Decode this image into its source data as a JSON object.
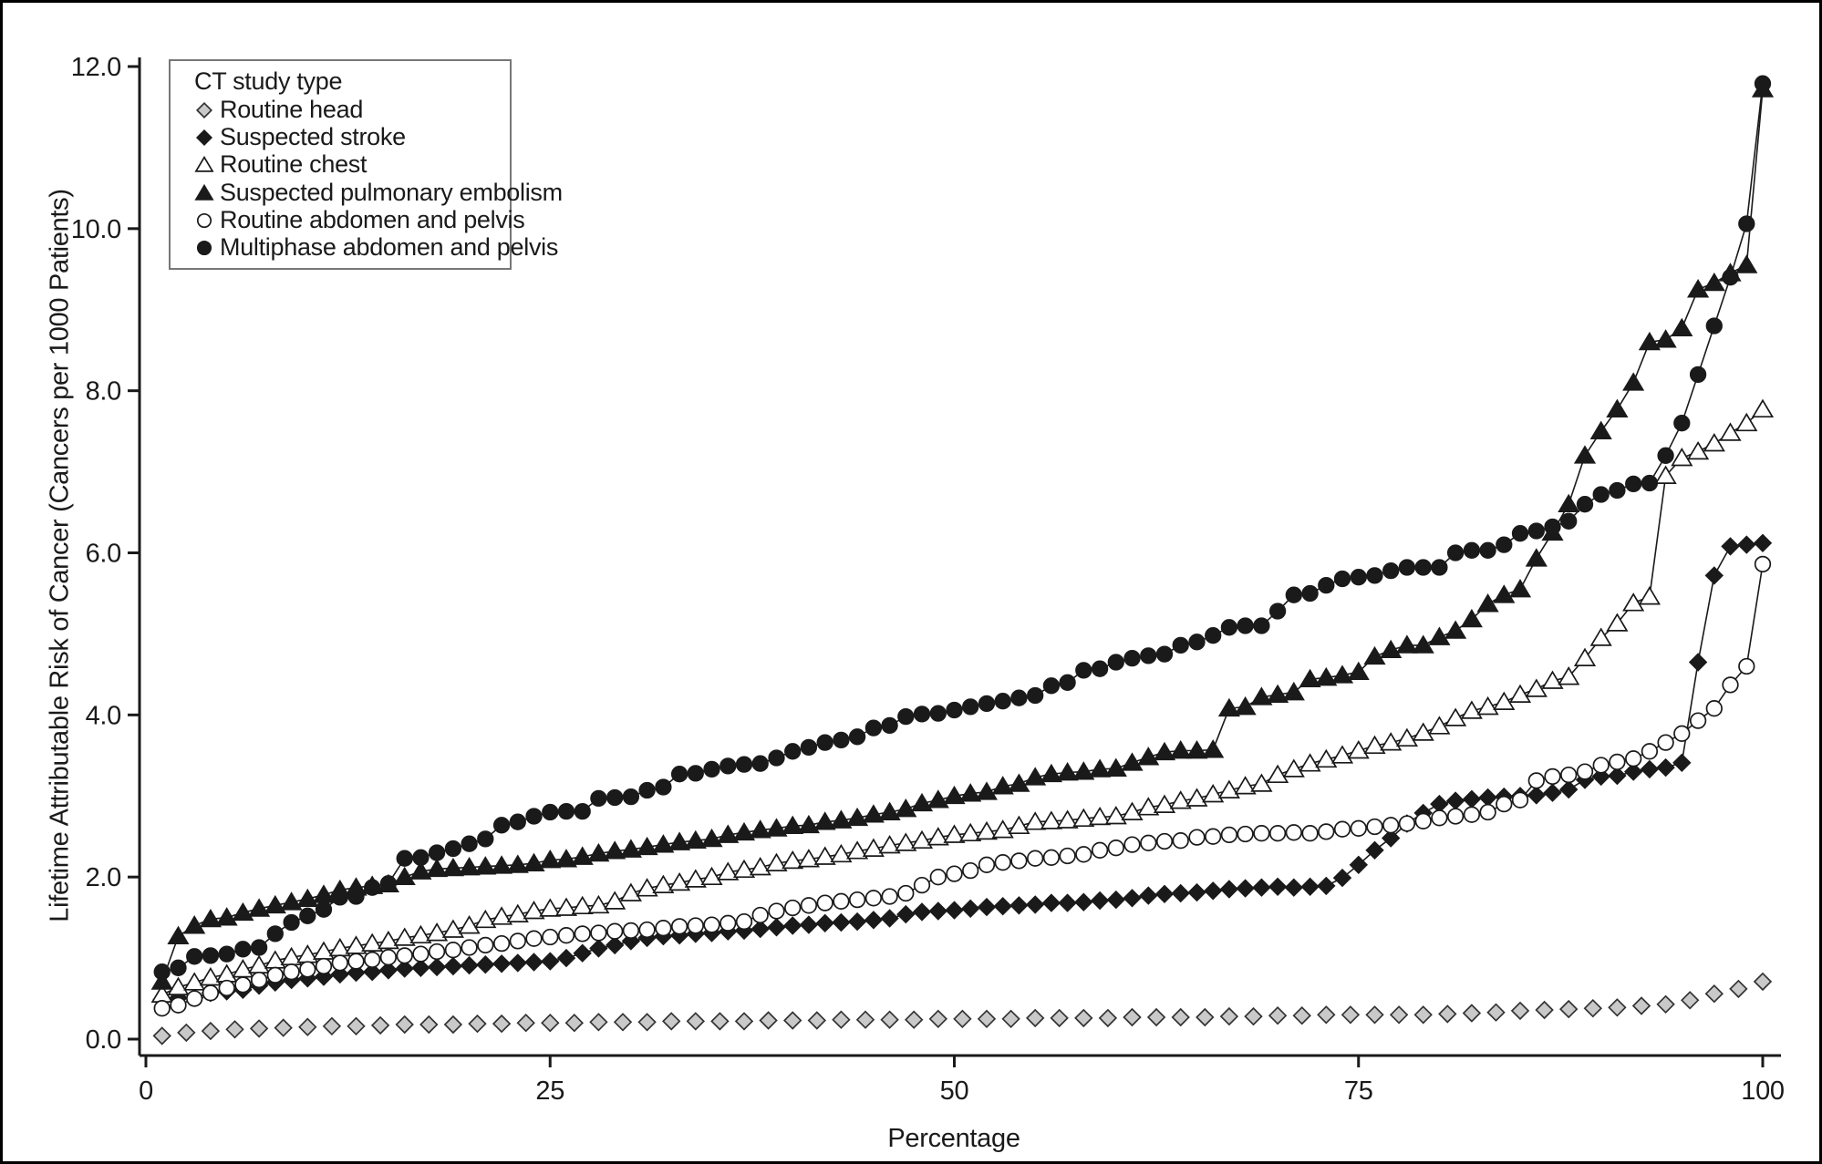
{
  "figure": {
    "xlabel": "Percentage",
    "ylabel": "Lifetime Attributable Risk of Cancer (Cancers per 1000 Patients)"
  },
  "chart_data": {
    "type": "scatter",
    "title": "",
    "xlabel": "Percentage",
    "ylabel": "Lifetime Attributable Risk of Cancer (Cancers per 1000 Patients)",
    "xlim": [
      0,
      100
    ],
    "ylim": [
      0,
      12
    ],
    "x_ticks": [
      0,
      25,
      50,
      75,
      100
    ],
    "y_ticks": [
      0,
      2,
      4,
      6,
      8,
      10,
      12
    ],
    "grid": false,
    "legend_title": "CT study type",
    "legend_position": "top-left",
    "line_color": "#1a1a1a",
    "series": [
      {
        "name": "Routine head",
        "marker": "diamond",
        "fill": "#c9c9c9",
        "outline": "#333333",
        "line": false,
        "x_start": 1,
        "x_step": 1.5,
        "values": [
          0.04,
          0.08,
          0.1,
          0.12,
          0.13,
          0.14,
          0.15,
          0.16,
          0.16,
          0.17,
          0.18,
          0.18,
          0.18,
          0.19,
          0.19,
          0.2,
          0.2,
          0.2,
          0.21,
          0.21,
          0.21,
          0.22,
          0.22,
          0.22,
          0.22,
          0.23,
          0.23,
          0.23,
          0.24,
          0.24,
          0.24,
          0.24,
          0.25,
          0.25,
          0.25,
          0.25,
          0.26,
          0.26,
          0.26,
          0.26,
          0.27,
          0.27,
          0.27,
          0.27,
          0.28,
          0.28,
          0.29,
          0.29,
          0.3,
          0.3,
          0.3,
          0.3,
          0.3,
          0.31,
          0.32,
          0.33,
          0.35,
          0.36,
          0.37,
          0.38,
          0.39,
          0.41,
          0.43,
          0.48,
          0.56,
          0.62,
          0.71
        ]
      },
      {
        "name": "Suspected stroke",
        "marker": "diamond",
        "fill": "#1a1a1a",
        "outline": "#1a1a1a",
        "line": true,
        "x_start": 1,
        "x_step": 1,
        "values": [
          0.49,
          0.51,
          0.51,
          0.57,
          0.59,
          0.61,
          0.66,
          0.7,
          0.73,
          0.75,
          0.77,
          0.8,
          0.82,
          0.83,
          0.85,
          0.87,
          0.88,
          0.89,
          0.9,
          0.91,
          0.92,
          0.93,
          0.94,
          0.95,
          0.96,
          1.0,
          1.06,
          1.12,
          1.16,
          1.21,
          1.25,
          1.27,
          1.28,
          1.3,
          1.31,
          1.33,
          1.34,
          1.36,
          1.38,
          1.4,
          1.41,
          1.43,
          1.44,
          1.45,
          1.47,
          1.49,
          1.54,
          1.57,
          1.58,
          1.59,
          1.61,
          1.63,
          1.64,
          1.65,
          1.66,
          1.68,
          1.68,
          1.69,
          1.71,
          1.72,
          1.74,
          1.77,
          1.79,
          1.8,
          1.81,
          1.83,
          1.85,
          1.86,
          1.87,
          1.88,
          1.87,
          1.88,
          1.89,
          1.99,
          2.15,
          2.33,
          2.48,
          2.66,
          2.79,
          2.9,
          2.94,
          2.96,
          2.98,
          2.99,
          3.0,
          3.01,
          3.04,
          3.08,
          3.2,
          3.24,
          3.25,
          3.3,
          3.33,
          3.35,
          3.41,
          4.65,
          5.72,
          6.08,
          6.1,
          6.12
        ]
      },
      {
        "name": "Routine chest",
        "marker": "triangle",
        "fill": "#ffffff",
        "outline": "#1a1a1a",
        "line": true,
        "x_start": 1,
        "x_step": 1,
        "values": [
          0.55,
          0.64,
          0.7,
          0.76,
          0.8,
          0.86,
          0.91,
          0.97,
          1.01,
          1.04,
          1.08,
          1.12,
          1.15,
          1.18,
          1.21,
          1.25,
          1.28,
          1.31,
          1.35,
          1.4,
          1.47,
          1.51,
          1.54,
          1.58,
          1.61,
          1.62,
          1.64,
          1.65,
          1.7,
          1.8,
          1.86,
          1.9,
          1.93,
          1.97,
          2.0,
          2.06,
          2.09,
          2.12,
          2.17,
          2.2,
          2.22,
          2.25,
          2.28,
          2.32,
          2.35,
          2.39,
          2.42,
          2.45,
          2.49,
          2.52,
          2.54,
          2.56,
          2.58,
          2.63,
          2.68,
          2.69,
          2.7,
          2.72,
          2.74,
          2.75,
          2.8,
          2.86,
          2.89,
          2.94,
          2.97,
          3.02,
          3.07,
          3.12,
          3.15,
          3.26,
          3.33,
          3.4,
          3.45,
          3.5,
          3.56,
          3.62,
          3.66,
          3.71,
          3.78,
          3.86,
          3.96,
          4.05,
          4.1,
          4.16,
          4.25,
          4.32,
          4.42,
          4.47,
          4.7,
          4.95,
          5.13,
          5.38,
          5.46,
          6.95,
          7.17,
          7.25,
          7.35,
          7.48,
          7.6,
          7.77
        ]
      },
      {
        "name": "Suspected pulmonary embolism",
        "marker": "triangle",
        "fill": "#1a1a1a",
        "outline": "#1a1a1a",
        "line": true,
        "x_start": 1,
        "x_step": 1,
        "values": [
          0.71,
          1.27,
          1.4,
          1.48,
          1.5,
          1.56,
          1.61,
          1.65,
          1.69,
          1.73,
          1.78,
          1.84,
          1.87,
          1.89,
          1.91,
          2.0,
          2.07,
          2.1,
          2.11,
          2.12,
          2.13,
          2.14,
          2.15,
          2.17,
          2.21,
          2.22,
          2.25,
          2.29,
          2.32,
          2.34,
          2.37,
          2.4,
          2.43,
          2.45,
          2.47,
          2.52,
          2.55,
          2.58,
          2.6,
          2.63,
          2.64,
          2.68,
          2.7,
          2.73,
          2.77,
          2.8,
          2.84,
          2.91,
          2.95,
          3.0,
          3.03,
          3.05,
          3.12,
          3.15,
          3.23,
          3.27,
          3.29,
          3.3,
          3.33,
          3.34,
          3.41,
          3.48,
          3.54,
          3.56,
          3.56,
          3.57,
          4.08,
          4.1,
          4.22,
          4.25,
          4.28,
          4.44,
          4.46,
          4.49,
          4.53,
          4.72,
          4.8,
          4.86,
          4.86,
          4.96,
          5.04,
          5.18,
          5.37,
          5.48,
          5.55,
          5.93,
          6.25,
          6.6,
          7.2,
          7.5,
          7.77,
          8.1,
          8.6,
          8.63,
          8.77,
          9.25,
          9.33,
          9.45,
          9.55,
          11.72
        ]
      },
      {
        "name": "Routine abdomen and pelvis",
        "marker": "circle",
        "fill": "#ffffff",
        "outline": "#1a1a1a",
        "line": true,
        "x_start": 1,
        "x_step": 1,
        "values": [
          0.38,
          0.42,
          0.5,
          0.57,
          0.63,
          0.67,
          0.73,
          0.79,
          0.83,
          0.86,
          0.9,
          0.94,
          0.96,
          0.98,
          1.01,
          1.03,
          1.05,
          1.08,
          1.1,
          1.13,
          1.16,
          1.18,
          1.21,
          1.24,
          1.26,
          1.28,
          1.3,
          1.31,
          1.33,
          1.34,
          1.35,
          1.37,
          1.39,
          1.4,
          1.41,
          1.43,
          1.45,
          1.53,
          1.58,
          1.62,
          1.65,
          1.68,
          1.7,
          1.72,
          1.74,
          1.76,
          1.8,
          1.9,
          2.0,
          2.04,
          2.08,
          2.15,
          2.18,
          2.2,
          2.23,
          2.24,
          2.26,
          2.28,
          2.33,
          2.36,
          2.4,
          2.42,
          2.44,
          2.45,
          2.49,
          2.5,
          2.52,
          2.53,
          2.54,
          2.54,
          2.55,
          2.54,
          2.56,
          2.59,
          2.6,
          2.62,
          2.64,
          2.66,
          2.69,
          2.73,
          2.75,
          2.77,
          2.8,
          2.9,
          2.95,
          3.19,
          3.24,
          3.26,
          3.3,
          3.38,
          3.42,
          3.46,
          3.55,
          3.66,
          3.77,
          3.93,
          4.08,
          4.37,
          4.6,
          5.86
        ]
      },
      {
        "name": "Multiphase abdomen and pelvis",
        "marker": "circle",
        "fill": "#1a1a1a",
        "outline": "#1a1a1a",
        "line": true,
        "x_start": 1,
        "x_step": 1,
        "values": [
          0.83,
          0.88,
          1.02,
          1.03,
          1.05,
          1.11,
          1.13,
          1.3,
          1.44,
          1.52,
          1.6,
          1.75,
          1.76,
          1.87,
          1.92,
          2.23,
          2.24,
          2.3,
          2.35,
          2.41,
          2.47,
          2.64,
          2.68,
          2.75,
          2.8,
          2.81,
          2.81,
          2.97,
          2.98,
          2.99,
          3.07,
          3.11,
          3.27,
          3.28,
          3.33,
          3.37,
          3.39,
          3.4,
          3.47,
          3.55,
          3.6,
          3.66,
          3.69,
          3.73,
          3.84,
          3.87,
          3.98,
          4.01,
          4.02,
          4.06,
          4.1,
          4.14,
          4.17,
          4.21,
          4.24,
          4.36,
          4.4,
          4.55,
          4.57,
          4.65,
          4.7,
          4.73,
          4.75,
          4.86,
          4.9,
          4.98,
          5.08,
          5.1,
          5.1,
          5.28,
          5.48,
          5.5,
          5.6,
          5.68,
          5.7,
          5.72,
          5.78,
          5.82,
          5.82,
          5.82,
          6.0,
          6.03,
          6.03,
          6.1,
          6.24,
          6.27,
          6.32,
          6.39,
          6.6,
          6.72,
          6.77,
          6.85,
          6.86,
          7.2,
          7.6,
          8.2,
          8.8,
          9.4,
          10.06,
          11.79
        ]
      }
    ]
  }
}
